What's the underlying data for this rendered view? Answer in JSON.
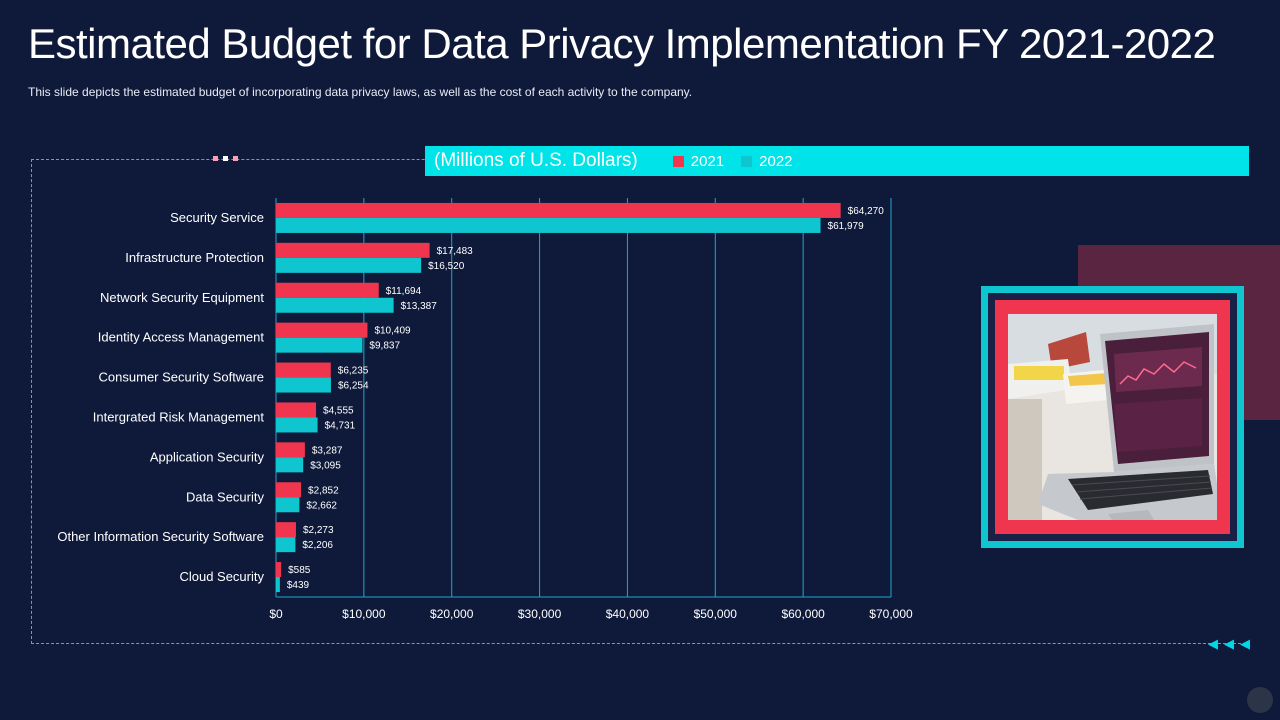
{
  "slide": {
    "title": "Estimated Budget for Data Privacy Implementation FY 2021-2022",
    "subtitle": "This slide depicts the estimated budget of incorporating  data  privacy laws, as well as the cost of each activity to the company."
  },
  "legend": {
    "unit": "(Millions  of U.S. Dollars)",
    "items": [
      {
        "label": "2021",
        "color": "#f0354f"
      },
      {
        "label": "2022",
        "color": "#0fc6d0"
      }
    ]
  },
  "chart_data": {
    "type": "bar",
    "orientation": "horizontal",
    "title": "",
    "unit_label": "(Millions  of U.S. Dollars)",
    "categories": [
      "Security Service",
      "Infrastructure Protection",
      "Network Security Equipment",
      "Identity Access Management ",
      "Consumer Security Software",
      "Intergrated Risk Management",
      "Application Security",
      "Data Security",
      "Other Information Security Software",
      "Cloud Security"
    ],
    "series": [
      {
        "name": "2021",
        "color": "#f0354f",
        "values": [
          64270,
          17483,
          11694,
          10409,
          6235,
          4555,
          3287,
          2852,
          2273,
          585
        ],
        "labels": [
          "$64,270",
          "$17,483",
          "$11,694",
          "$10,409",
          "$6,235",
          "$4,555",
          "$3,287",
          "$2,852",
          "$2,273",
          "$585"
        ]
      },
      {
        "name": "2022",
        "color": "#0fc6d0",
        "values": [
          61979,
          16520,
          13387,
          9837,
          6254,
          4731,
          3095,
          2662,
          2206,
          439
        ],
        "labels": [
          "$61,979",
          "$16,520",
          "$13,387",
          "$9,837",
          "$6,254",
          "$4,731",
          "$3,095",
          "$2,662",
          "$2,206",
          "$439"
        ]
      }
    ],
    "xlim": [
      0,
      70000
    ],
    "xticks": [
      0,
      10000,
      20000,
      30000,
      40000,
      50000,
      60000,
      70000
    ],
    "xtick_labels": [
      "$0",
      "$10,000",
      "$20,000",
      "$30,000",
      "$40,000",
      "$50,000",
      "$60,000",
      "$70,000"
    ],
    "grid": true,
    "legend_position": "top"
  },
  "colors": {
    "background": "#0f1a3b",
    "grid": "#1fa6c9",
    "accent_cyan": "#00e3e8",
    "accent_red": "#f0354f"
  },
  "decor": {
    "arrows": [
      "◀",
      "◀",
      "◀"
    ]
  }
}
